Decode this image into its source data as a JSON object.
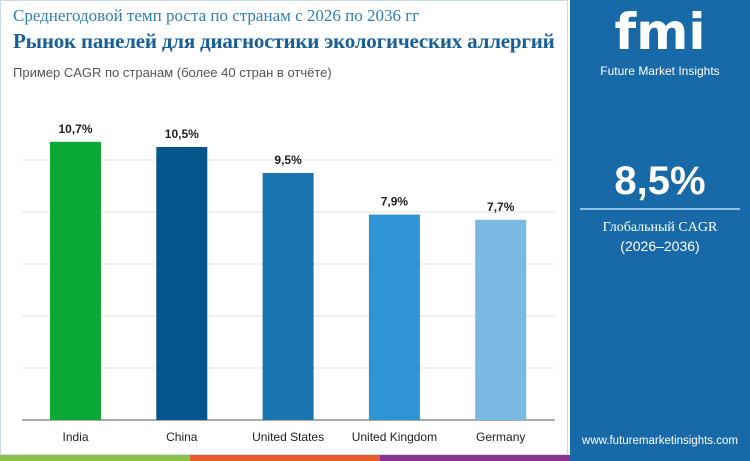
{
  "header": {
    "subtitle": "Среднегодовой темп роста по странам с 2026 по 2036 гг",
    "title": "Рынок панелей для диагностики экологических аллергий",
    "note": "Пример CAGR по странам (более 40 стран в отчёте)"
  },
  "sidebar": {
    "logo_text": "fmi",
    "logo_caption": "Future Market Insights",
    "global_value": "8,5%",
    "global_label": "Глобальный CAGR",
    "global_period": "(2026–2036)",
    "url": "www.futuremarketinsights.com"
  },
  "colors": {
    "stripe": [
      "#8cc04a",
      "#e85d2e",
      "#8b3391"
    ],
    "sidebar": "#1769a7"
  },
  "chart_data": {
    "type": "bar",
    "categories": [
      "India",
      "China",
      "United States",
      "United Kingdom",
      "Germany"
    ],
    "values": [
      10.7,
      10.5,
      9.5,
      7.9,
      7.7
    ],
    "labels": [
      "10,7%",
      "10,5%",
      "9,5%",
      "7,9%",
      "7,7%"
    ],
    "colors": [
      "#0aa834",
      "#04568c",
      "#1a74b0",
      "#2f94d6",
      "#7ab9e2"
    ],
    "ylim": [
      0,
      12
    ],
    "grid": true
  }
}
